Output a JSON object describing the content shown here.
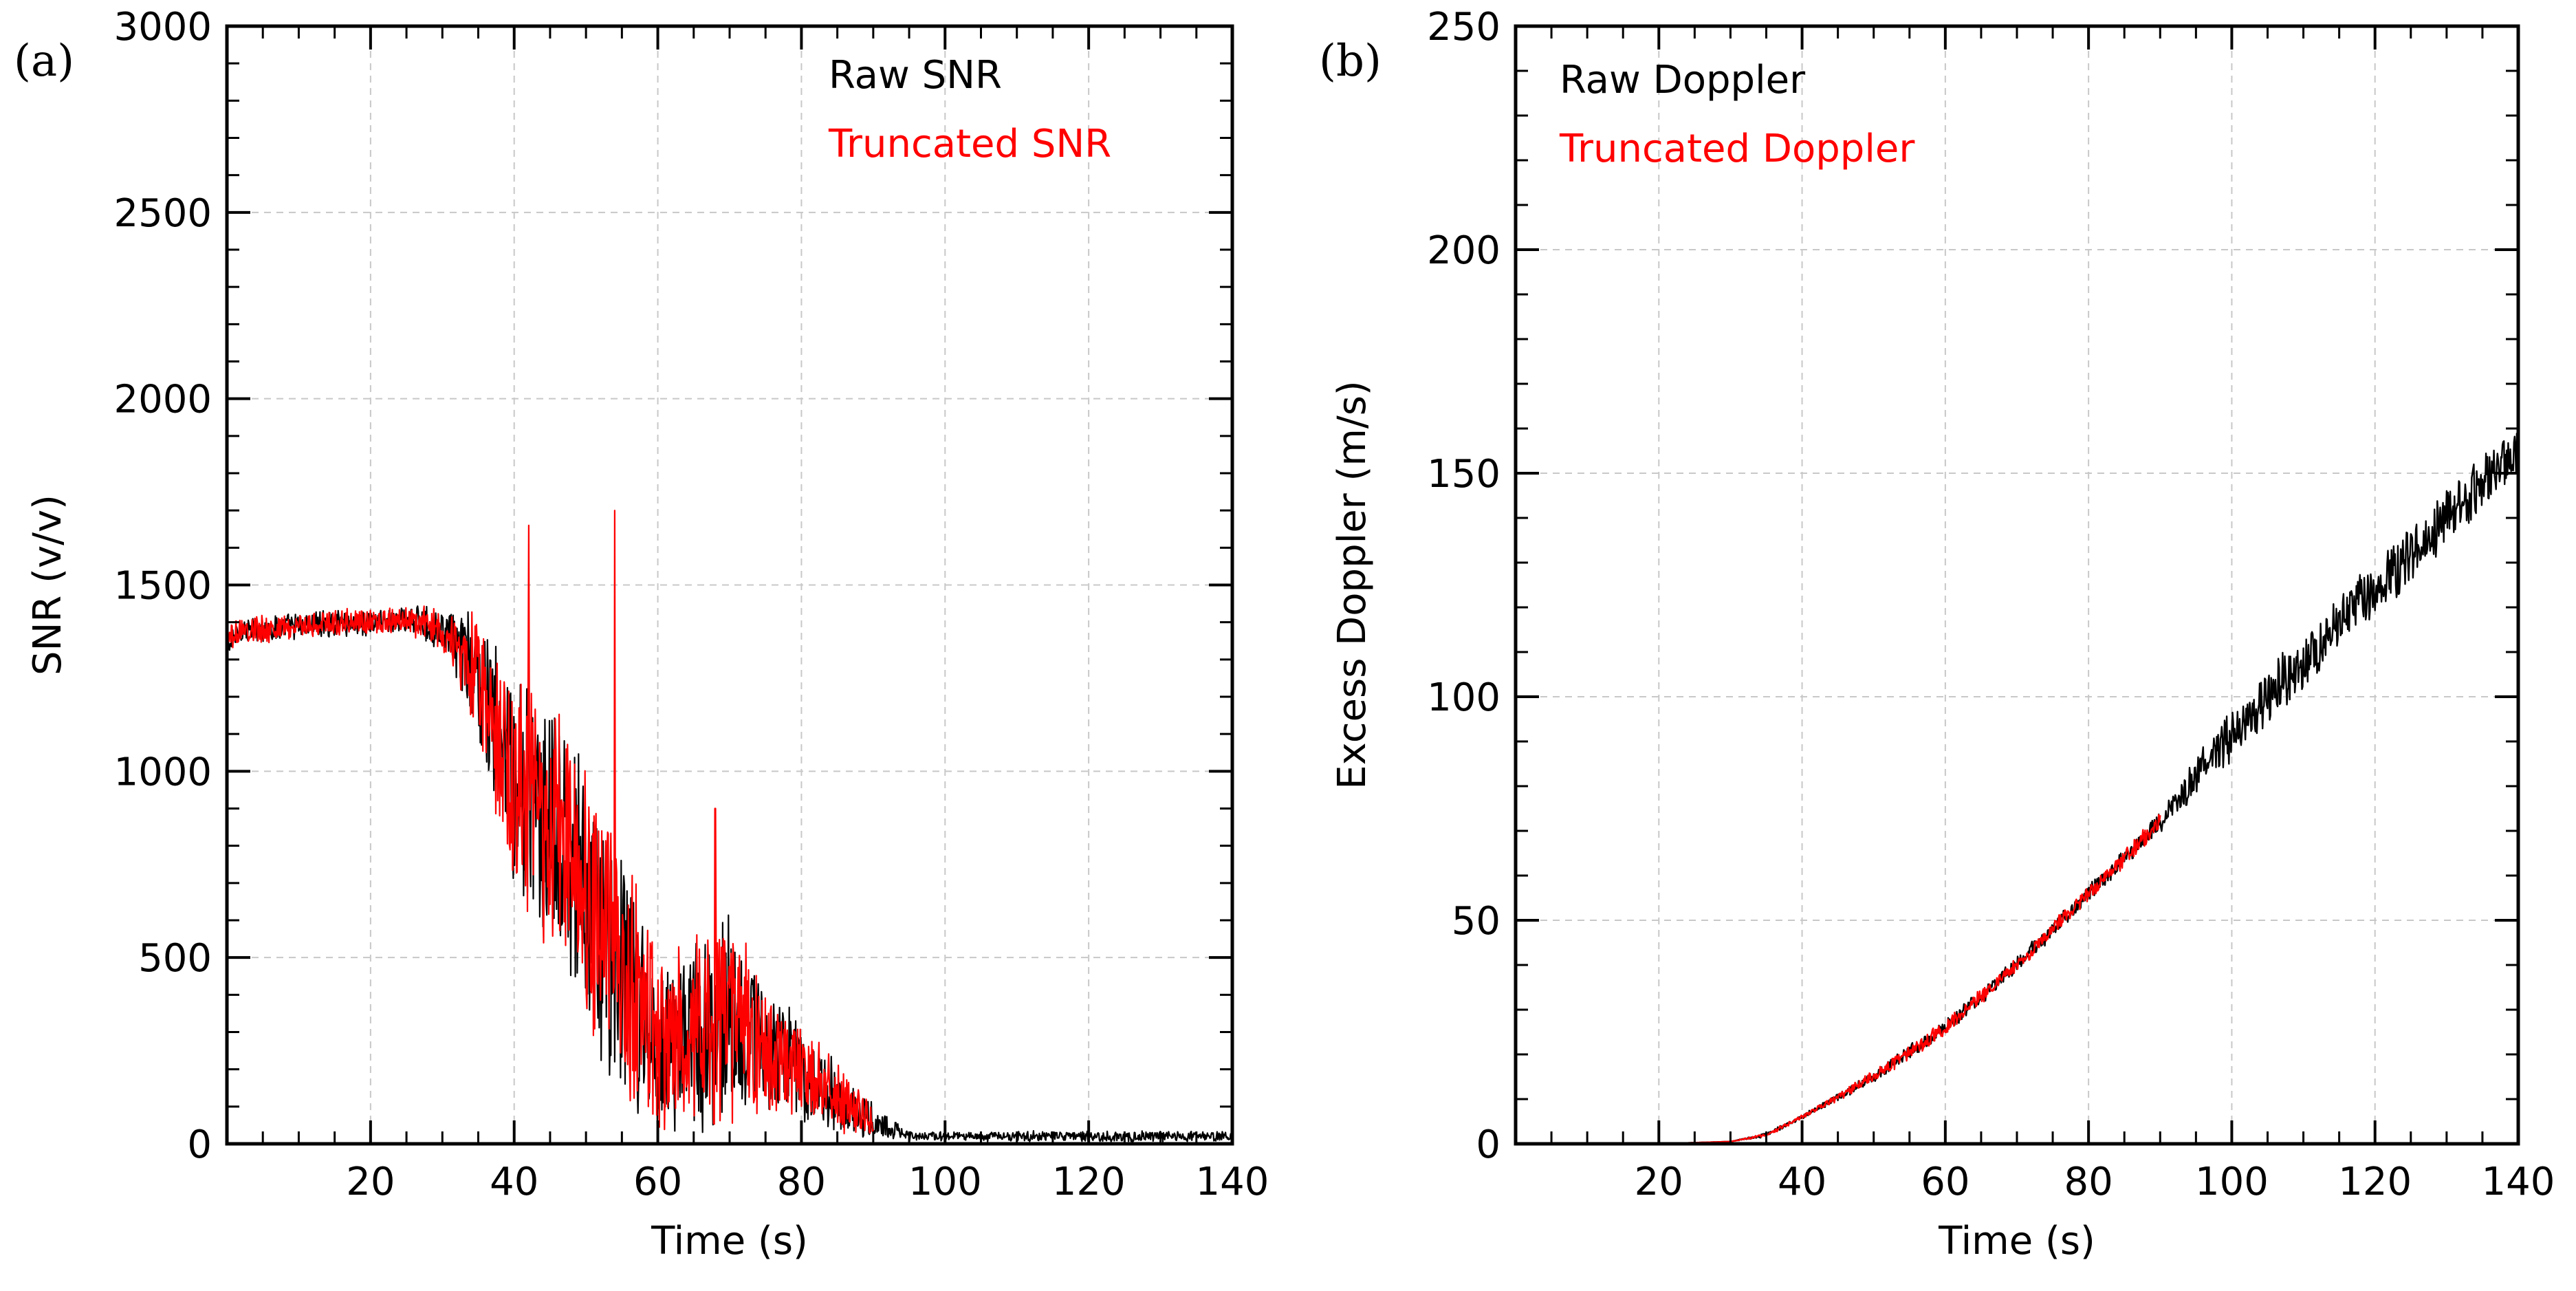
{
  "chart_data": [
    {
      "type": "line",
      "panel_label": "(a)",
      "xlabel": "Time (s)",
      "ylabel": "SNR (v/v)",
      "xlim": [
        0,
        140
      ],
      "ylim": [
        0,
        3000
      ],
      "x_ticks": [
        20,
        40,
        60,
        80,
        100,
        120,
        140
      ],
      "y_ticks": [
        0,
        500,
        1000,
        1500,
        2000,
        2500,
        3000
      ],
      "grid": true,
      "legend_position": "top-right",
      "series": [
        {
          "name": "Raw SNR",
          "color": "#000000",
          "x": [
            0,
            2,
            5,
            10,
            15,
            20,
            25,
            30,
            35,
            40,
            45,
            50,
            55,
            60,
            65,
            70,
            75,
            80,
            85,
            90,
            95,
            100,
            110,
            120,
            130,
            140
          ],
          "y": [
            1330,
            1380,
            1380,
            1390,
            1400,
            1400,
            1410,
            1380,
            1250,
            950,
            850,
            650,
            450,
            250,
            300,
            350,
            250,
            200,
            120,
            60,
            20,
            20,
            20,
            20,
            20,
            20
          ],
          "noise": [
            40,
            40,
            40,
            40,
            40,
            40,
            40,
            60,
            200,
            350,
            350,
            400,
            400,
            250,
            300,
            300,
            200,
            150,
            100,
            50,
            15,
            15,
            15,
            15,
            15,
            15
          ]
        },
        {
          "name": "Truncated SNR",
          "color": "#ff0000",
          "x": [
            0,
            2,
            5,
            10,
            15,
            20,
            25,
            30,
            35,
            40,
            45,
            50,
            55,
            60,
            65,
            70,
            75,
            80,
            85,
            90
          ],
          "y": [
            1350,
            1380,
            1380,
            1390,
            1400,
            1400,
            1410,
            1380,
            1250,
            950,
            850,
            650,
            450,
            250,
            300,
            350,
            250,
            200,
            120,
            60
          ],
          "noise": [
            40,
            40,
            40,
            40,
            40,
            40,
            40,
            60,
            200,
            350,
            350,
            400,
            400,
            250,
            300,
            300,
            200,
            150,
            100,
            50
          ],
          "spikes": [
            {
              "x": 42,
              "y": 1660
            },
            {
              "x": 54,
              "y": 1700
            },
            {
              "x": 68,
              "y": 900
            }
          ]
        }
      ]
    },
    {
      "type": "line",
      "panel_label": "(b)",
      "xlabel": "Time (s)",
      "ylabel": "Excess Doppler (m/s)",
      "xlim": [
        0,
        140
      ],
      "ylim": [
        0,
        250
      ],
      "x_ticks": [
        20,
        40,
        60,
        80,
        100,
        120,
        140
      ],
      "y_ticks": [
        0,
        50,
        100,
        150,
        200,
        250
      ],
      "grid": true,
      "legend_position": "top-left",
      "series": [
        {
          "name": "Raw Doppler",
          "color": "#000000",
          "x": [
            0,
            10,
            20,
            30,
            35,
            40,
            50,
            60,
            70,
            80,
            90,
            100,
            110,
            120,
            130,
            140
          ],
          "y": [
            0,
            0,
            0,
            0.5,
            2,
            6,
            15,
            26,
            40,
            56,
            72,
            92,
            108,
            124,
            140,
            156
          ],
          "noise": [
            0,
            0,
            0,
            0,
            0.5,
            0.5,
            1.5,
            2,
            2,
            2,
            2.5,
            7,
            7,
            7,
            7,
            7
          ]
        },
        {
          "name": "Truncated Doppler",
          "color": "#ff0000",
          "x": [
            0,
            10,
            20,
            30,
            35,
            40,
            50,
            60,
            70,
            80,
            90
          ],
          "y": [
            0,
            0,
            0,
            0.5,
            2,
            6,
            15,
            26,
            40,
            56,
            72
          ],
          "noise": [
            0,
            0,
            0,
            0,
            0.5,
            0.5,
            1.5,
            2,
            2,
            2,
            2.5
          ]
        }
      ]
    }
  ]
}
